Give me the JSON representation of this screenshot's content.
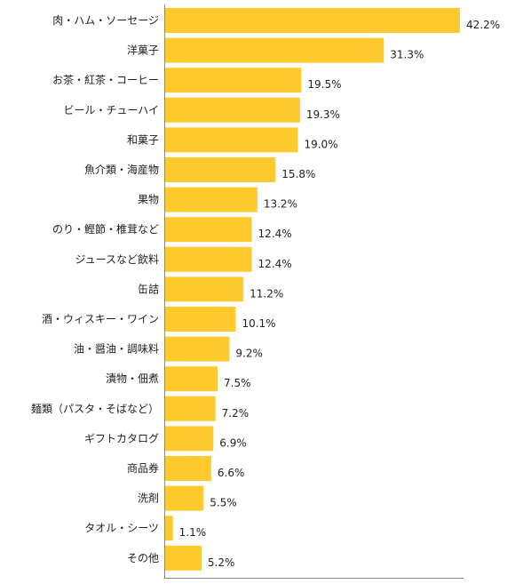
{
  "chart_data": {
    "type": "bar",
    "orientation": "horizontal",
    "categories": [
      "肉・ハム・ソーセージ",
      "洋菓子",
      "お茶・紅茶・コーヒー",
      "ビール・チューハイ",
      "和菓子",
      "魚介類・海産物",
      "果物",
      "のり・鰹節・椎茸など",
      "ジュースなど飲料",
      "缶詰",
      "酒・ウィスキー・ワイン",
      "油・醤油・調味料",
      "漬物・佃煮",
      "麺類（パスタ・そばなど）",
      "ギフトカタログ",
      "商品券",
      "洗剤",
      "タオル・シーツ",
      "その他"
    ],
    "values": [
      42.2,
      31.3,
      19.5,
      19.3,
      19.0,
      15.8,
      13.2,
      12.4,
      12.4,
      11.2,
      10.1,
      9.2,
      7.5,
      7.2,
      6.9,
      6.6,
      5.5,
      1.1,
      5.2
    ],
    "value_labels": [
      "42.2%",
      "31.3%",
      "19.5%",
      "19.3%",
      "19.0%",
      "15.8%",
      "13.2%",
      "12.4%",
      "12.4%",
      "11.2%",
      "10.1%",
      "9.2%",
      "7.5%",
      "7.2%",
      "6.9%",
      "6.6%",
      "5.5%",
      "1.1%",
      "5.2%"
    ],
    "xlim": [
      0,
      45
    ],
    "bar_color": "#FFCA2E",
    "axis_color": "#888888",
    "grid": false,
    "legend": "none"
  }
}
